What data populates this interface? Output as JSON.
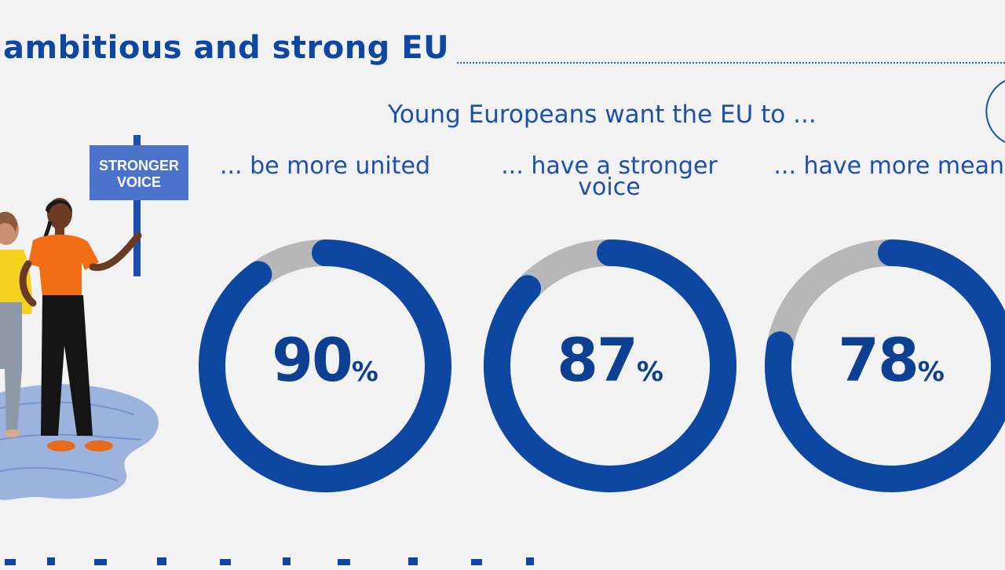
{
  "header": {
    "title": "ambitious and strong EU"
  },
  "sign": {
    "line1": "STRONGER",
    "line2": "VOICE"
  },
  "colors": {
    "primary": "#0d47a1",
    "ring_fill": "#0d47a1",
    "ring_remainder": "#b7b7b7",
    "sign_fill": "#4a73c9"
  },
  "chart_data": {
    "type": "pie",
    "title": "Young Europeans want the EU to ...",
    "series": [
      {
        "name": "... be more united",
        "value": 90,
        "unit": "%"
      },
      {
        "name": "... have a stronger voice",
        "value": 87,
        "unit": "%"
      },
      {
        "name": "... have more means",
        "value": 78,
        "unit": "%"
      }
    ]
  }
}
